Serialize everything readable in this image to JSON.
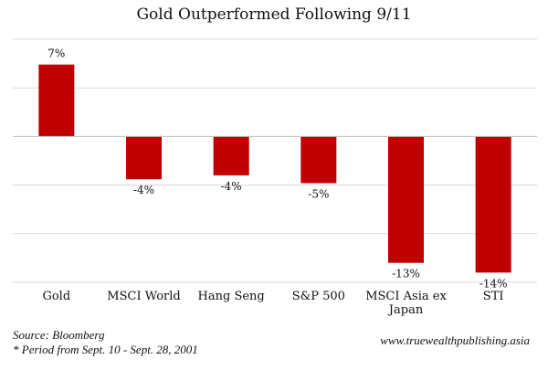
{
  "chart_data": {
    "type": "bar",
    "title": "Gold Outperformed Following 9/11",
    "categories": [
      "Gold",
      "MSCI World",
      "Hang Seng",
      "S&P 500",
      "MSCI Asia ex Japan",
      "STI"
    ],
    "category_lines": [
      [
        "Gold"
      ],
      [
        "MSCI World"
      ],
      [
        "Hang Seng"
      ],
      [
        "S&P 500"
      ],
      [
        "MSCI Asia ex",
        "Japan"
      ],
      [
        "STI"
      ]
    ],
    "values": [
      7.4,
      -4.4,
      -4.0,
      -4.8,
      -13.0,
      -14.0
    ],
    "data_labels": [
      "7%",
      "-4%",
      "-4%",
      "-5%",
      "-13%",
      "-14%"
    ],
    "ylim": [
      -15,
      10
    ],
    "gridlines": [
      10,
      5,
      0,
      -5,
      -10,
      -15
    ],
    "bar_color": "#c00000",
    "grid_color": "#d9d9d9",
    "axis_color": "#bfbfbf"
  },
  "footer": {
    "source": "Source: Bloomberg",
    "period": "* Period from Sept. 10 - Sept. 28, 2001",
    "website": "www.truewealthpublishing.asia"
  }
}
